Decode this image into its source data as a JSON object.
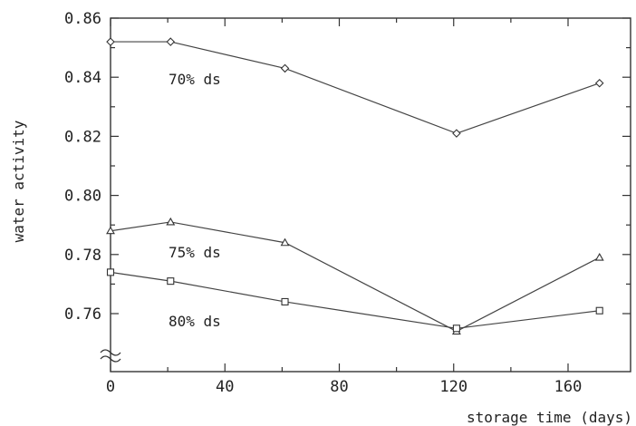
{
  "chart_data": {
    "type": "line",
    "title": "",
    "xlabel": "storage time (days)",
    "ylabel": "water activity",
    "xlim": [
      0,
      175
    ],
    "ylim": [
      0.748,
      0.86
    ],
    "x_ticks": [
      0,
      40,
      80,
      120,
      160
    ],
    "y_ticks": [
      0.76,
      0.78,
      0.8,
      0.82,
      0.84,
      0.86
    ],
    "y_tick_labels": [
      "0.76",
      "0.78",
      "0.80",
      "0.82",
      "0.84",
      "0.86"
    ],
    "axis_break": "y",
    "grid": false,
    "series": [
      {
        "name": "70% ds",
        "marker": "diamond",
        "x": [
          0,
          21,
          61,
          121,
          171
        ],
        "y": [
          0.852,
          0.852,
          0.843,
          0.821,
          0.838
        ]
      },
      {
        "name": "75% ds",
        "marker": "triangle",
        "x": [
          0,
          21,
          61,
          121,
          171
        ],
        "y": [
          0.788,
          0.791,
          0.784,
          0.754,
          0.779
        ]
      },
      {
        "name": "80% ds",
        "marker": "square",
        "x": [
          0,
          21,
          61,
          121,
          171
        ],
        "y": [
          0.774,
          0.771,
          0.764,
          0.755,
          0.761
        ]
      }
    ]
  }
}
